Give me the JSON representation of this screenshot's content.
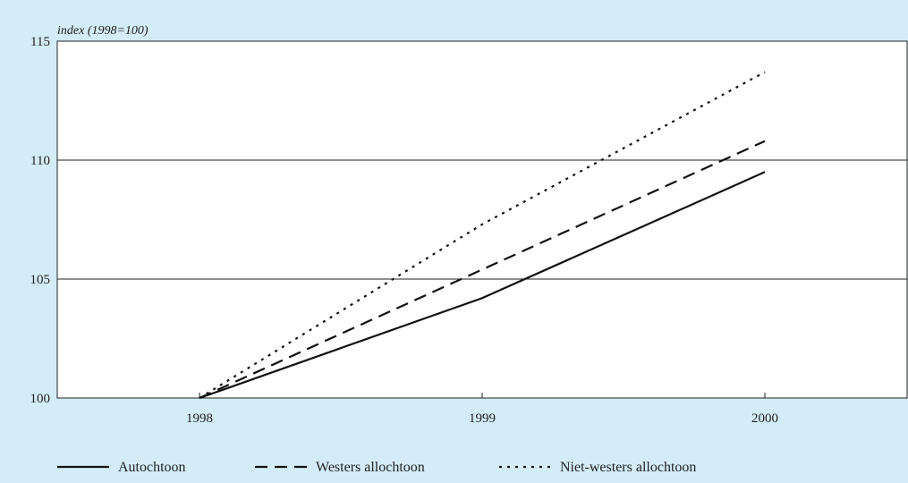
{
  "chart_data": {
    "type": "line",
    "ylabel": "index (1998=100)",
    "xlabel": "",
    "title": "",
    "x": [
      "1998",
      "1999",
      "2000"
    ],
    "ylim": [
      100,
      115
    ],
    "yticks": [
      100,
      105,
      110,
      115
    ],
    "grid": "horizontal",
    "legend": "bottom",
    "series": [
      {
        "name": "Autochtoon",
        "values": [
          100,
          104.2,
          109.5
        ],
        "style": "solid",
        "color": "#111111"
      },
      {
        "name": "Westers allochtoon",
        "values": [
          100,
          105.4,
          110.8
        ],
        "style": "dashed",
        "color": "#111111"
      },
      {
        "name": "Niet-westers allochtoon",
        "values": [
          100,
          107.3,
          113.7
        ],
        "style": "dotted",
        "color": "#111111"
      }
    ]
  },
  "colors": {
    "background": "#d3ecf8",
    "plot_area": "#ffffff",
    "axis": "#222222"
  }
}
